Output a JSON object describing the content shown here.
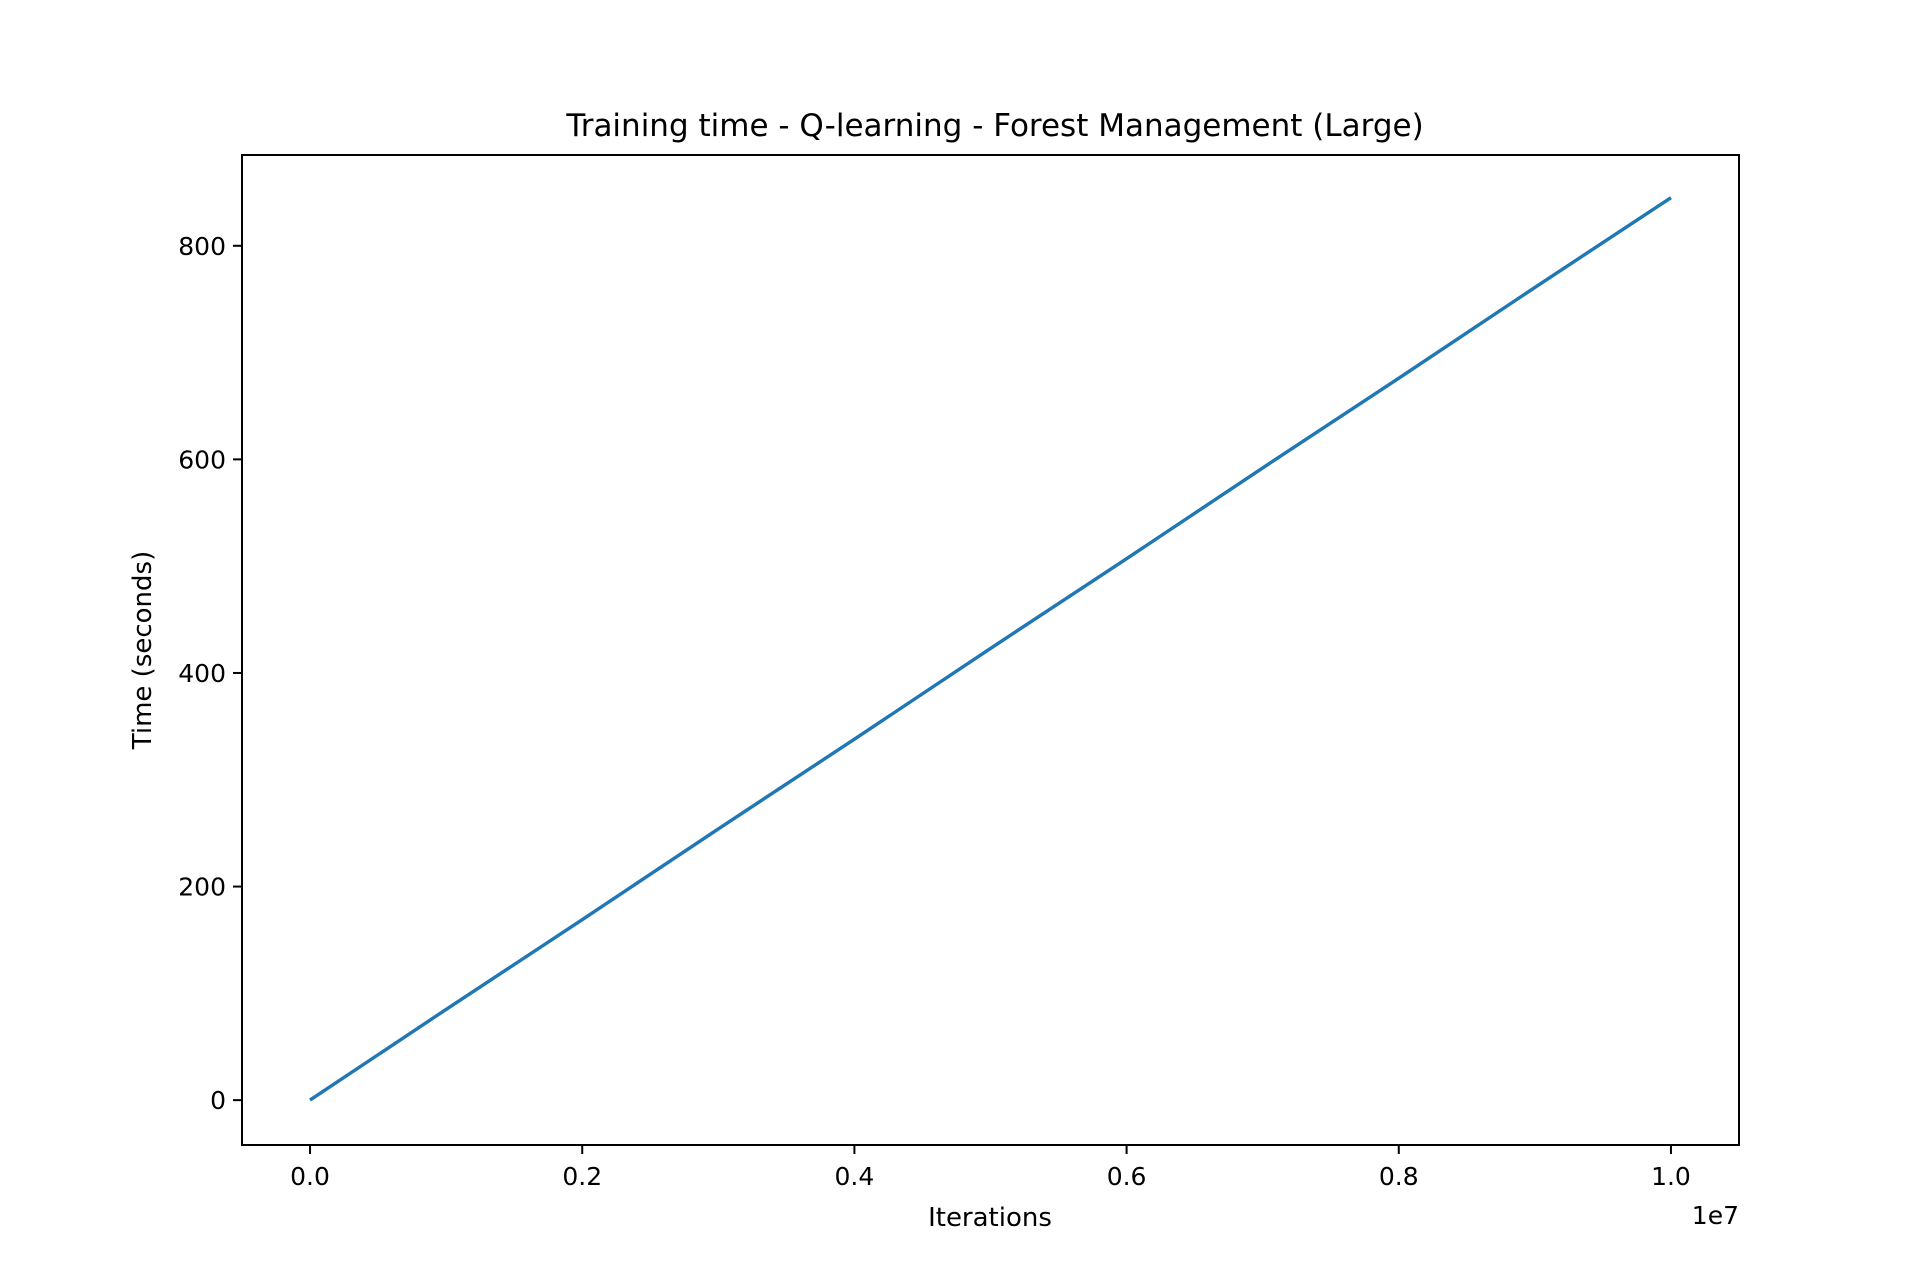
{
  "chart_data": {
    "type": "line",
    "title": "Training time - Q-learning - Forest Management (Large)",
    "xlabel": "Iterations",
    "ylabel": "Time (seconds)",
    "x_offset_text": "1e7",
    "xlim": [
      -0.05,
      1.05
    ],
    "ylim": [
      -42,
      885
    ],
    "x_ticks": [
      0.0,
      0.2,
      0.4,
      0.6,
      0.8,
      1.0
    ],
    "x_tick_labels": [
      "0.0",
      "0.2",
      "0.4",
      "0.6",
      "0.8",
      "1.0"
    ],
    "y_ticks": [
      0,
      200,
      400,
      600,
      800
    ],
    "y_tick_labels": [
      "0",
      "200",
      "400",
      "600",
      "800"
    ],
    "grid": false,
    "legend": "none",
    "series": [
      {
        "color": "#1f77b4",
        "x": [
          0.0,
          0.1,
          0.2,
          0.3,
          0.4,
          0.5,
          0.6,
          0.7,
          0.8,
          0.9,
          1.0
        ],
        "y": [
          0,
          85,
          169,
          254,
          338,
          423,
          507,
          592,
          676,
          761,
          845
        ]
      }
    ]
  }
}
